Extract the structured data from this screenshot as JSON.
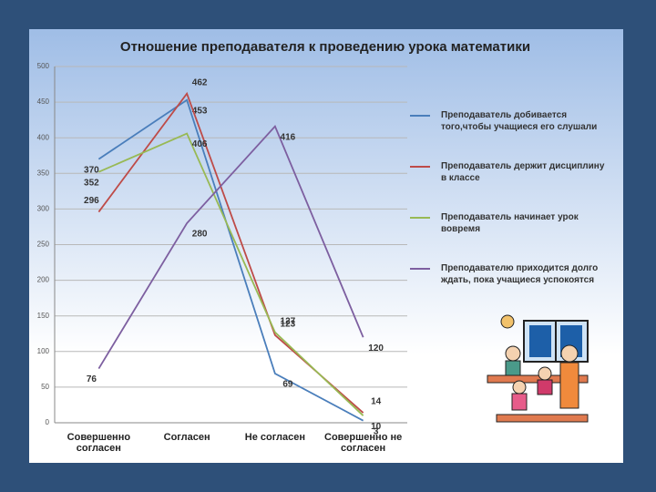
{
  "chart_data": {
    "type": "line",
    "title": "Отношение преподавателя к проведению урока математики",
    "categories": [
      "Совершенно согласен",
      "Согласен",
      "Не согласен",
      "Совершенно не согласен"
    ],
    "series": [
      {
        "name": "Преподаватель добивается того,чтобы учащиеся его слушали",
        "color": "#4a7ebb",
        "values": [
          370,
          453,
          69,
          3
        ]
      },
      {
        "name": "Преподаватель держит дисциплину в классе",
        "color": "#be4b48",
        "values": [
          296,
          462,
          123,
          14
        ]
      },
      {
        "name": "Преподаватель начинает урок вовремя",
        "color": "#98b954",
        "values": [
          352,
          406,
          127,
          10
        ]
      },
      {
        "name": "Преподавателю приходится долго ждать, пока учащиеся успокоятся",
        "color": "#7d5fa0",
        "values": [
          76,
          280,
          416,
          120
        ]
      }
    ],
    "ylim": [
      0,
      500
    ],
    "yticks": [
      0,
      50,
      100,
      150,
      200,
      250,
      300,
      350,
      400,
      450,
      500
    ],
    "grid": true,
    "legend": "right"
  }
}
